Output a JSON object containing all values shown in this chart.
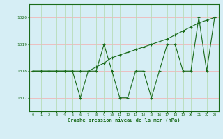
{
  "series1_x": [
    0,
    1,
    2,
    3,
    4,
    5,
    6,
    7,
    8,
    9,
    10,
    11,
    12,
    13,
    14,
    15,
    16,
    17,
    18,
    19,
    20,
    21,
    22,
    23
  ],
  "series1_y": [
    1018,
    1018,
    1018,
    1018,
    1018,
    1018,
    1017,
    1018,
    1018,
    1019,
    1018,
    1017,
    1017,
    1018,
    1018,
    1017,
    1018,
    1019,
    1019,
    1018,
    1018,
    1020,
    1018,
    1020
  ],
  "series2_x": [
    0,
    1,
    2,
    3,
    4,
    5,
    6,
    7,
    8,
    9,
    10,
    11,
    12,
    13,
    14,
    15,
    16,
    17,
    18,
    19,
    20,
    21,
    22,
    23
  ],
  "series2_y": [
    1018,
    1018,
    1018,
    1018,
    1018,
    1018,
    1018,
    1018,
    1018.15,
    1018.3,
    1018.5,
    1018.6,
    1018.7,
    1018.8,
    1018.9,
    1019.0,
    1019.1,
    1019.2,
    1019.35,
    1019.5,
    1019.65,
    1019.8,
    1019.9,
    1020.0
  ],
  "line_color": "#1a6b1a",
  "bg_color": "#d6eef5",
  "grid_color_h": "#f0b8b8",
  "grid_color_v": "#b8ddb8",
  "xlabel": "Graphe pression niveau de la mer (hPa)",
  "ylim": [
    1016.5,
    1020.5
  ],
  "xlim": [
    -0.5,
    23.5
  ],
  "yticks": [
    1017,
    1018,
    1019,
    1020
  ],
  "xticks": [
    0,
    1,
    2,
    3,
    4,
    5,
    6,
    7,
    8,
    9,
    10,
    11,
    12,
    13,
    14,
    15,
    16,
    17,
    18,
    19,
    20,
    21,
    22,
    23
  ]
}
